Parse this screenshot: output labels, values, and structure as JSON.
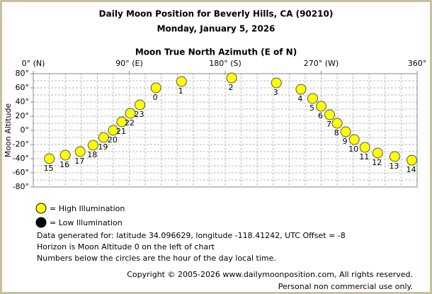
{
  "chart_data": {
    "type": "scatter",
    "title": "Daily Moon Position for Beverly Hills, CA (90210)",
    "subtitle": "Monday, January 5, 2026",
    "x_label": "Moon True North Azimuth (E of N)",
    "y_label": "Moon Altitude",
    "series": [
      {
        "name": "= High Illumination",
        "color": "#ffff00",
        "x": [
          115,
          139,
          186,
          228,
          251,
          262,
          270,
          278,
          285,
          293,
          301,
          311,
          323,
          339,
          355,
          15,
          30,
          44,
          56,
          66,
          75,
          83,
          91,
          100
        ],
        "values": [
          60,
          69,
          74,
          67,
          58,
          45,
          34,
          22,
          10,
          -2,
          -13,
          -24,
          -32,
          -37,
          -42,
          -40,
          -35,
          -30,
          -21,
          -10,
          0,
          12,
          24,
          36
        ],
        "point_labels": [
          "0",
          "1",
          "2",
          "3",
          "4",
          "5",
          "6",
          "7",
          "8",
          "9",
          "10",
          "11",
          "12",
          "13",
          "14",
          "15",
          "16",
          "17",
          "18",
          "19",
          "20",
          "21",
          "22",
          "23"
        ]
      },
      {
        "name": "= Low Illumination",
        "color": "#000000",
        "x": [],
        "values": []
      }
    ],
    "xlim": [
      0,
      360
    ],
    "xticks": [
      {
        "value": 0,
        "label": "0° (N)"
      },
      {
        "value": 90,
        "label": "90° (E)"
      },
      {
        "value": 180,
        "label": "180° (S)"
      },
      {
        "value": 270,
        "label": "270° (W)"
      },
      {
        "value": 360,
        "label": "360°"
      }
    ],
    "ylim": [
      -80,
      80
    ],
    "yticks": [
      {
        "value": 80,
        "label": "80°"
      },
      {
        "value": 60,
        "label": "60°"
      },
      {
        "value": 40,
        "label": "40°"
      },
      {
        "value": 20,
        "label": "20°"
      },
      {
        "value": 0,
        "label": "0°"
      },
      {
        "value": -20,
        "label": "-20°"
      },
      {
        "value": -40,
        "label": "-40°"
      },
      {
        "value": -60,
        "label": "-60°"
      },
      {
        "value": -80,
        "label": "-80°"
      }
    ],
    "xgrid": [
      15,
      30,
      45,
      60,
      75,
      90,
      105,
      120,
      135,
      150,
      165,
      180,
      195,
      210,
      225,
      240,
      255,
      270,
      285,
      300,
      315,
      330,
      345
    ],
    "ygrid": [
      70,
      60,
      50,
      40,
      30,
      20,
      10,
      0,
      -10,
      -20,
      -30,
      -40,
      -50,
      -60,
      -70
    ],
    "grid": true,
    "notes": [
      "Data generated for: latitude 34.096629, longitude -118.41242, UTC Offset = -8",
      "Horizon is Moon Altitude 0 on the left of chart",
      "Numbers below the circles are the hour of the day local time."
    ],
    "copyright": [
      "Copyright © 2005-2026 www.dailymoonposition.com, All rights reserved.",
      "Personal non commercial use only."
    ]
  }
}
